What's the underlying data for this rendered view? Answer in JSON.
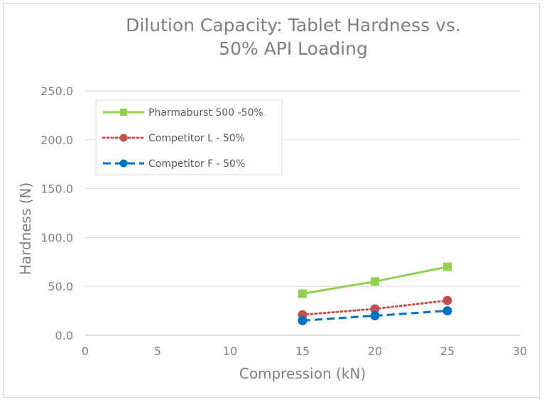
{
  "chart_data": {
    "type": "line",
    "title_lines": [
      "Dilution Capacity: Tablet Hardness vs.",
      "50% API Loading"
    ],
    "xlabel": "Compression (kN)",
    "ylabel": "Hardness (N)",
    "xlim": [
      0,
      30
    ],
    "ylim": [
      0,
      250
    ],
    "x_ticks": [
      "0",
      "5",
      "10",
      "15",
      "20",
      "25",
      "30"
    ],
    "y_ticks": [
      "0.0",
      "50.0",
      "100.0",
      "150.0",
      "200.0",
      "250.0"
    ],
    "grid": "horizontal",
    "legend_position": "top-left",
    "series": [
      {
        "name": "Pharmaburst 500 -50%",
        "color": "#92d050",
        "style": "solid",
        "marker": "square",
        "x": [
          15,
          20,
          25
        ],
        "y": [
          42.5,
          55,
          70
        ]
      },
      {
        "name": "Competitor L - 50%",
        "color": "#c0504d",
        "style": "dotted",
        "marker": "circle",
        "x": [
          15,
          20,
          25
        ],
        "y": [
          21,
          27,
          35.5
        ]
      },
      {
        "name": "Competitor F - 50%",
        "color": "#0070c0",
        "style": "dashed",
        "marker": "circle",
        "x": [
          15,
          20,
          25
        ],
        "y": [
          15,
          20,
          25
        ]
      }
    ]
  }
}
